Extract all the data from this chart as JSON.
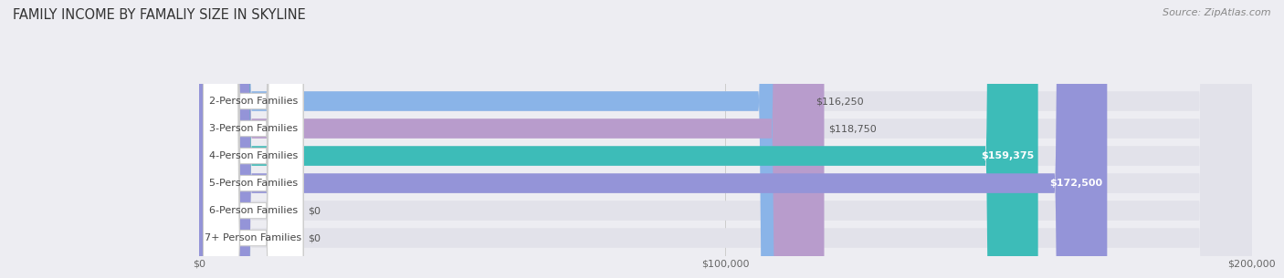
{
  "title": "FAMILY INCOME BY FAMALIY SIZE IN SKYLINE",
  "source": "Source: ZipAtlas.com",
  "categories": [
    "2-Person Families",
    "3-Person Families",
    "4-Person Families",
    "5-Person Families",
    "6-Person Families",
    "7+ Person Families"
  ],
  "values": [
    116250,
    118750,
    159375,
    172500,
    0,
    0
  ],
  "bar_colors": [
    "#8ab4e8",
    "#b89ccc",
    "#3dbcb8",
    "#9494d8",
    "#f898a8",
    "#f8c890"
  ],
  "value_label_colors": [
    "#555555",
    "#555555",
    "#ffffff",
    "#ffffff",
    "#555555",
    "#555555"
  ],
  "value_labels": [
    "$116,250",
    "$118,750",
    "$159,375",
    "$172,500",
    "$0",
    "$0"
  ],
  "xmax": 200000,
  "xticks": [
    0,
    100000,
    200000
  ],
  "xticklabels": [
    "$0",
    "$100,000",
    "$200,000"
  ],
  "background_color": "#ededf2",
  "bar_background": "#e2e2ea",
  "title_fontsize": 10.5,
  "source_fontsize": 8,
  "label_fontsize": 8,
  "value_fontsize": 8
}
